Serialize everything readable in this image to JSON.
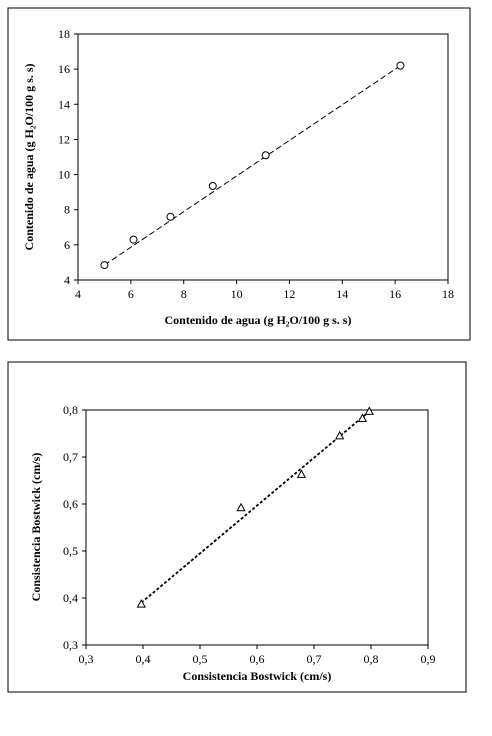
{
  "chart_data": [
    {
      "type": "scatter",
      "marker": "circle",
      "xlabel": "Contenido de agua (g H₂O/100 g s. s)",
      "ylabel": "Contenido de agua (g H₂O/100 g s. s)",
      "xlim": [
        4,
        18
      ],
      "ylim": [
        4,
        18
      ],
      "xticks": [
        "4",
        "6",
        "8",
        "10",
        "12",
        "14",
        "16",
        "18"
      ],
      "yticks": [
        "4",
        "6",
        "8",
        "10",
        "12",
        "14",
        "16",
        "18"
      ],
      "grid": false,
      "trendline": {
        "style": "dashed",
        "from": [
          5.0,
          4.85
        ],
        "to": [
          16.2,
          16.2
        ]
      },
      "points": [
        {
          "x": 5.0,
          "y": 4.85
        },
        {
          "x": 6.1,
          "y": 6.3
        },
        {
          "x": 7.5,
          "y": 7.6
        },
        {
          "x": 9.1,
          "y": 9.35
        },
        {
          "x": 11.1,
          "y": 11.1
        },
        {
          "x": 16.2,
          "y": 16.2
        }
      ]
    },
    {
      "type": "scatter",
      "marker": "triangle",
      "xlabel": "Consistencia Bostwick (cm/s)",
      "ylabel": "Consistencia Bostwick (cm/s)",
      "xlim": [
        0.3,
        0.9
      ],
      "ylim": [
        0.3,
        0.8
      ],
      "xticks": [
        "0,3",
        "0,4",
        "0,5",
        "0,6",
        "0,7",
        "0,8",
        "0,9"
      ],
      "yticks": [
        "0,3",
        "0,4",
        "0,5",
        "0,6",
        "0,7",
        "0,8"
      ],
      "grid": false,
      "trendline": {
        "style": "dotted",
        "from": [
          0.397,
          0.39
        ],
        "to": [
          0.797,
          0.797
        ]
      },
      "points": [
        {
          "x": 0.397,
          "y": 0.387
        },
        {
          "x": 0.572,
          "y": 0.592
        },
        {
          "x": 0.678,
          "y": 0.663
        },
        {
          "x": 0.745,
          "y": 0.745
        },
        {
          "x": 0.785,
          "y": 0.782
        },
        {
          "x": 0.797,
          "y": 0.797
        }
      ]
    }
  ]
}
